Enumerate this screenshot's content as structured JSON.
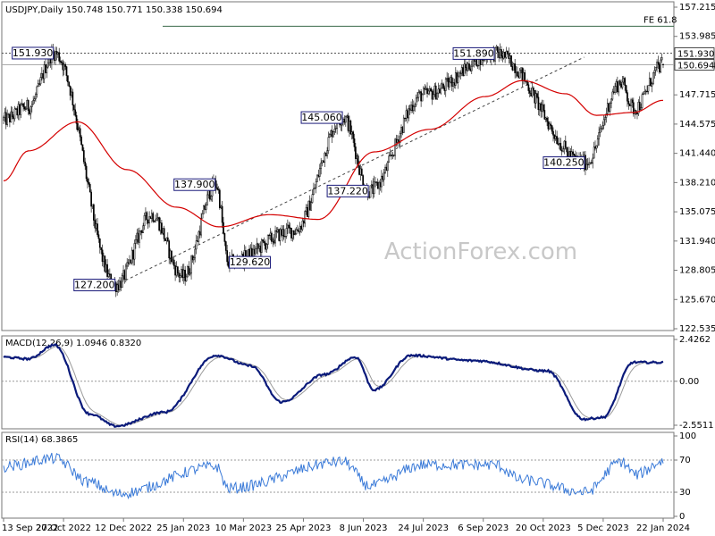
{
  "colors": {
    "candle": "#000000",
    "ma": "#d40000",
    "macd": "#0a1a7a",
    "signal": "#9a9a9a",
    "rsi": "#3a7ad8",
    "grid": "#9a9a9a",
    "label_border": "#1a1a7a"
  },
  "watermark": "ActionForex.com",
  "main": {
    "header": "USDJPY,Daily  150.748 150.771 150.338 150.694",
    "y_ticks": [
      "157.215",
      "153.985",
      "150.694",
      "147.715",
      "144.575",
      "141.440",
      "138.210",
      "135.075",
      "131.940",
      "128.805",
      "125.670",
      "122.535"
    ],
    "fe_label": "FE 61.8",
    "fe_level": 154.8,
    "resistance": 151.93,
    "right_tags": [
      {
        "text": "151.930",
        "value": 151.93
      },
      {
        "text": "150.694",
        "value": 150.694
      }
    ],
    "annotations": [
      {
        "text": "151.930",
        "day": 41,
        "value": 151.93,
        "side": "left"
      },
      {
        "text": "127.200",
        "day": 91,
        "value": 127.2,
        "side": "left"
      },
      {
        "text": "137.900",
        "day": 172,
        "value": 137.9,
        "side": "left"
      },
      {
        "text": "129.620",
        "day": 182,
        "value": 129.62,
        "side": "right"
      },
      {
        "text": "145.060",
        "day": 275,
        "value": 145.06,
        "side": "left"
      },
      {
        "text": "137.220",
        "day": 296,
        "value": 137.22,
        "side": "left"
      },
      {
        "text": "151.890",
        "day": 398,
        "value": 151.89,
        "side": "left"
      },
      {
        "text": "140.250",
        "day": 471,
        "value": 140.25,
        "side": "left"
      }
    ]
  },
  "macd_panel": {
    "header": "MACD(12,26,9) 1.0946 0.8320",
    "y_ticks": [
      "2.4262",
      "0.00",
      "-2.5511"
    ]
  },
  "rsi_panel": {
    "header": "RSI(14) 68.3865",
    "y_ticks": [
      "100",
      "70",
      "30",
      "0"
    ]
  },
  "x_ticks": [
    "13 Sep 2022",
    "27 Oct 2022",
    "12 Dec 2022",
    "25 Jan 2023",
    "10 Mar 2023",
    "25 Apr 2023",
    "8 Jun 2023",
    "24 Jul 2023",
    "6 Sep 2023",
    "20 Oct 2023",
    "5 Dec 2023",
    "22 Jan 2024"
  ],
  "chart_data": {
    "type": "candlestick",
    "symbol": "USDJPY",
    "timeframe": "Daily",
    "ohlc_last": {
      "open": 150.748,
      "high": 150.771,
      "low": 150.338,
      "close": 150.694
    },
    "ylim": [
      122.535,
      157.215
    ],
    "fe_618": 154.8,
    "pivots": [
      {
        "day": 0,
        "value": 144.8
      },
      {
        "day": 20,
        "value": 146.2
      },
      {
        "day": 41,
        "value": 151.93
      },
      {
        "day": 91,
        "value": 127.2
      },
      {
        "day": 120,
        "value": 134.7
      },
      {
        "day": 145,
        "value": 128.1
      },
      {
        "day": 172,
        "value": 137.9
      },
      {
        "day": 182,
        "value": 129.62
      },
      {
        "day": 235,
        "value": 133.0
      },
      {
        "day": 275,
        "value": 145.06
      },
      {
        "day": 296,
        "value": 137.22
      },
      {
        "day": 340,
        "value": 147.5
      },
      {
        "day": 398,
        "value": 151.89
      },
      {
        "day": 471,
        "value": 140.25
      },
      {
        "day": 500,
        "value": 148.8
      },
      {
        "day": 510,
        "value": 146.0
      },
      {
        "day": 534,
        "value": 150.694
      }
    ],
    "ma_points": [
      {
        "day": 0,
        "value": 138.3
      },
      {
        "day": 20,
        "value": 141.5
      },
      {
        "day": 60,
        "value": 144.6
      },
      {
        "day": 100,
        "value": 139.5
      },
      {
        "day": 140,
        "value": 135.5
      },
      {
        "day": 175,
        "value": 133.4
      },
      {
        "day": 215,
        "value": 134.7
      },
      {
        "day": 255,
        "value": 134.2
      },
      {
        "day": 300,
        "value": 141.4
      },
      {
        "day": 345,
        "value": 143.8
      },
      {
        "day": 390,
        "value": 147.3
      },
      {
        "day": 420,
        "value": 149.0
      },
      {
        "day": 455,
        "value": 147.6
      },
      {
        "day": 480,
        "value": 145.3
      },
      {
        "day": 510,
        "value": 145.6
      },
      {
        "day": 534,
        "value": 146.9
      }
    ],
    "macd": {
      "fast": 12,
      "slow": 26,
      "signal": 9,
      "value": 1.0946,
      "signal_value": 0.832,
      "ylim": [
        -2.5511,
        2.4262
      ],
      "points": [
        {
          "day": 0,
          "value": 1.4
        },
        {
          "day": 20,
          "value": 1.3
        },
        {
          "day": 41,
          "value": 2.1
        },
        {
          "day": 70,
          "value": -1.9
        },
        {
          "day": 91,
          "value": -2.6
        },
        {
          "day": 130,
          "value": -1.8
        },
        {
          "day": 172,
          "value": 1.5
        },
        {
          "day": 200,
          "value": 0.9
        },
        {
          "day": 225,
          "value": -1.2
        },
        {
          "day": 260,
          "value": 0.4
        },
        {
          "day": 285,
          "value": 1.4
        },
        {
          "day": 300,
          "value": -0.5
        },
        {
          "day": 330,
          "value": 1.5
        },
        {
          "day": 380,
          "value": 1.2
        },
        {
          "day": 440,
          "value": 0.6
        },
        {
          "day": 470,
          "value": -2.2
        },
        {
          "day": 485,
          "value": -2.1
        },
        {
          "day": 510,
          "value": 1.1
        },
        {
          "day": 534,
          "value": 1.09
        }
      ]
    },
    "rsi": {
      "period": 14,
      "value": 68.3865,
      "ylim": [
        0,
        100
      ],
      "points": [
        {
          "day": 0,
          "value": 62
        },
        {
          "day": 41,
          "value": 72
        },
        {
          "day": 70,
          "value": 42
        },
        {
          "day": 91,
          "value": 28
        },
        {
          "day": 172,
          "value": 62
        },
        {
          "day": 182,
          "value": 35
        },
        {
          "day": 275,
          "value": 68
        },
        {
          "day": 296,
          "value": 38
        },
        {
          "day": 340,
          "value": 64
        },
        {
          "day": 398,
          "value": 64
        },
        {
          "day": 420,
          "value": 45
        },
        {
          "day": 471,
          "value": 30
        },
        {
          "day": 500,
          "value": 68
        },
        {
          "day": 512,
          "value": 52
        },
        {
          "day": 534,
          "value": 68.39
        }
      ]
    }
  }
}
